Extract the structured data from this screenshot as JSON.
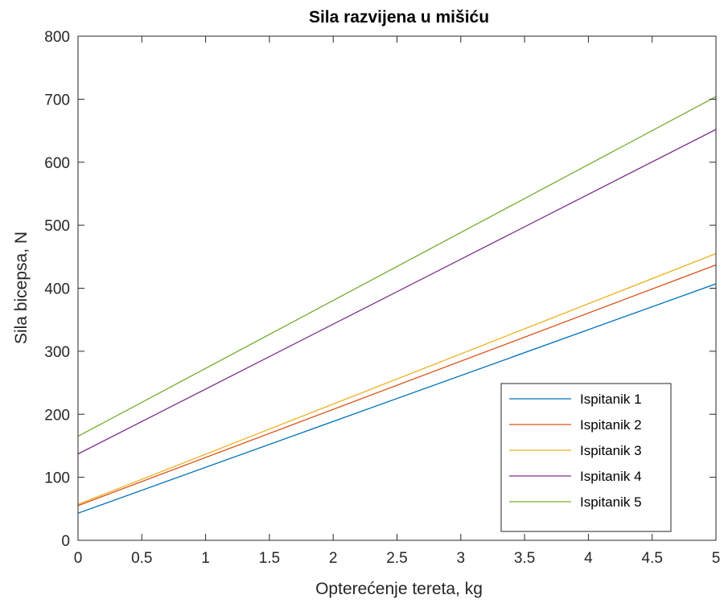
{
  "chart_data": {
    "type": "line",
    "title": "Sila razvijena u mišiću",
    "xlabel": "Opterećenje tereta, kg",
    "ylabel": "Sila bicepsa, N",
    "xlim": [
      0,
      5
    ],
    "ylim": [
      0,
      800
    ],
    "xticks": [
      0,
      0.5,
      1,
      1.5,
      2,
      2.5,
      3,
      3.5,
      4,
      4.5,
      5
    ],
    "xtick_labels": [
      "0",
      "0.5",
      "1",
      "1.5",
      "2",
      "2.5",
      "3",
      "3.5",
      "4",
      "4.5",
      "5"
    ],
    "yticks": [
      0,
      100,
      200,
      300,
      400,
      500,
      600,
      700,
      800
    ],
    "ytick_labels": [
      "0",
      "100",
      "200",
      "300",
      "400",
      "500",
      "600",
      "700",
      "800"
    ],
    "grid": false,
    "legend_position": "bottom-right",
    "series": [
      {
        "name": "Ispitanik 1",
        "color": "#0072BD",
        "x": [
          0,
          5
        ],
        "y": [
          43,
          407
        ]
      },
      {
        "name": "Ispitanik 2",
        "color": "#D95319",
        "x": [
          0,
          5
        ],
        "y": [
          55,
          437
        ]
      },
      {
        "name": "Ispitanik 3",
        "color": "#EDB120",
        "x": [
          0,
          5
        ],
        "y": [
          57,
          455
        ]
      },
      {
        "name": "Ispitanik 4",
        "color": "#7E2F8E",
        "x": [
          0,
          5
        ],
        "y": [
          137,
          652
        ]
      },
      {
        "name": "Ispitanik 5",
        "color": "#77AC30",
        "x": [
          0,
          5
        ],
        "y": [
          165,
          704
        ]
      }
    ]
  }
}
